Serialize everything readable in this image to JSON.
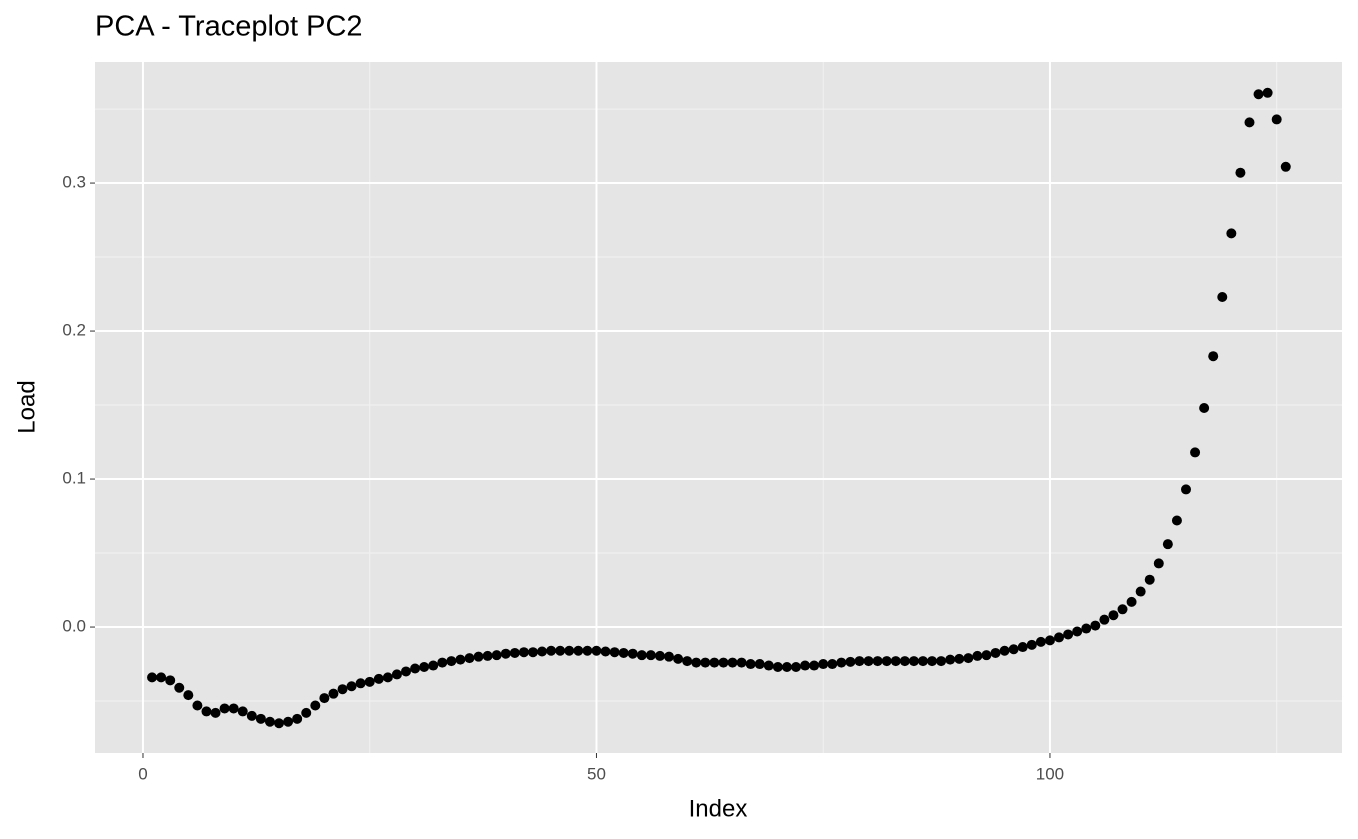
{
  "chart_data": {
    "type": "scatter",
    "title": "PCA - Traceplot PC2",
    "x_label": "Index",
    "y_label": "Load",
    "x": [
      1,
      2,
      3,
      4,
      5,
      6,
      7,
      8,
      9,
      10,
      11,
      12,
      13,
      14,
      15,
      16,
      17,
      18,
      19,
      20,
      21,
      22,
      23,
      24,
      25,
      26,
      27,
      28,
      29,
      30,
      31,
      32,
      33,
      34,
      35,
      36,
      37,
      38,
      39,
      40,
      41,
      42,
      43,
      44,
      45,
      46,
      47,
      48,
      49,
      50,
      51,
      52,
      53,
      54,
      55,
      56,
      57,
      58,
      59,
      60,
      61,
      62,
      63,
      64,
      65,
      66,
      67,
      68,
      69,
      70,
      71,
      72,
      73,
      74,
      75,
      76,
      77,
      78,
      79,
      80,
      81,
      82,
      83,
      84,
      85,
      86,
      87,
      88,
      89,
      90,
      91,
      92,
      93,
      94,
      95,
      96,
      97,
      98,
      99,
      100,
      101,
      102,
      103,
      104,
      105,
      106,
      107,
      108,
      109,
      110,
      111,
      112,
      113,
      114,
      115,
      116,
      117,
      118,
      119,
      120,
      121,
      122,
      123,
      124,
      125,
      126
    ],
    "values": [
      -0.034,
      -0.034,
      -0.036,
      -0.041,
      -0.046,
      -0.053,
      -0.057,
      -0.058,
      -0.055,
      -0.055,
      -0.057,
      -0.06,
      -0.062,
      -0.064,
      -0.065,
      -0.064,
      -0.062,
      -0.058,
      -0.053,
      -0.048,
      -0.045,
      -0.042,
      -0.04,
      -0.038,
      -0.037,
      -0.035,
      -0.034,
      -0.032,
      -0.03,
      -0.028,
      -0.027,
      -0.026,
      -0.024,
      -0.023,
      -0.022,
      -0.021,
      -0.02,
      -0.0195,
      -0.019,
      -0.018,
      -0.0175,
      -0.017,
      -0.017,
      -0.0165,
      -0.016,
      -0.016,
      -0.016,
      -0.016,
      -0.016,
      -0.016,
      -0.0165,
      -0.017,
      -0.0175,
      -0.018,
      -0.019,
      -0.019,
      -0.0195,
      -0.02,
      -0.0215,
      -0.023,
      -0.024,
      -0.024,
      -0.024,
      -0.024,
      -0.024,
      -0.024,
      -0.025,
      -0.025,
      -0.026,
      -0.027,
      -0.027,
      -0.027,
      -0.026,
      -0.026,
      -0.025,
      -0.025,
      -0.024,
      -0.0235,
      -0.023,
      -0.023,
      -0.023,
      -0.023,
      -0.023,
      -0.023,
      -0.023,
      -0.023,
      -0.023,
      -0.023,
      -0.022,
      -0.0215,
      -0.021,
      -0.0195,
      -0.019,
      -0.0175,
      -0.016,
      -0.015,
      -0.0135,
      -0.012,
      -0.01,
      -0.009,
      -0.007,
      -0.005,
      -0.003,
      -0.001,
      0.001,
      0.005,
      0.008,
      0.012,
      0.017,
      0.024,
      0.032,
      0.043,
      0.056,
      0.072,
      0.093,
      0.118,
      0.148,
      0.183,
      0.223,
      0.266,
      0.307,
      0.341,
      0.36,
      0.361,
      0.343,
      0.311
    ],
    "color": "#000000",
    "xlim": [
      -5.29,
      132.2
    ],
    "xticks": [
      0,
      50,
      100
    ],
    "ylim": [
      -0.0851,
      0.3818
    ],
    "yticks": [
      {
        "value": 0,
        "label": "0.0"
      },
      0.1,
      0.2,
      0.3
    ],
    "grid": true
  }
}
